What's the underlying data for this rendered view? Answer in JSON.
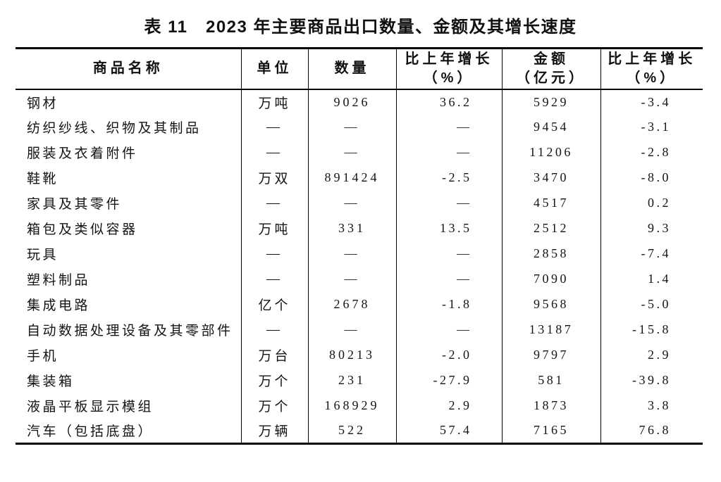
{
  "title": "表 11　2023 年主要商品出口数量、金额及其增长速度",
  "colors": {
    "background": "#ffffff",
    "text": "#1a1a1a",
    "border": "#000000"
  },
  "table": {
    "column_names": [
      "commodity-name",
      "unit",
      "quantity",
      "quantity-growth-pct",
      "amount",
      "amount-growth-pct"
    ],
    "headers": [
      {
        "label": "商品名称",
        "sub": ""
      },
      {
        "label": "单位",
        "sub": ""
      },
      {
        "label": "数量",
        "sub": ""
      },
      {
        "label": "比上年增长",
        "sub": "（%）"
      },
      {
        "label": "金额",
        "sub": "（亿元）"
      },
      {
        "label": "比上年增长",
        "sub": "（%）"
      }
    ],
    "rows": [
      [
        "钢材",
        "万吨",
        "9026",
        "36.2",
        "5929",
        "-3.4"
      ],
      [
        "纺织纱线、织物及其制品",
        "—",
        "—",
        "—",
        "9454",
        "-3.1"
      ],
      [
        "服装及衣着附件",
        "—",
        "—",
        "—",
        "11206",
        "-2.8"
      ],
      [
        "鞋靴",
        "万双",
        "891424",
        "-2.5",
        "3470",
        "-8.0"
      ],
      [
        "家具及其零件",
        "—",
        "—",
        "—",
        "4517",
        "0.2"
      ],
      [
        "箱包及类似容器",
        "万吨",
        "331",
        "13.5",
        "2512",
        "9.3"
      ],
      [
        "玩具",
        "—",
        "—",
        "—",
        "2858",
        "-7.4"
      ],
      [
        "塑料制品",
        "—",
        "—",
        "—",
        "7090",
        "1.4"
      ],
      [
        "集成电路",
        "亿个",
        "2678",
        "-1.8",
        "9568",
        "-5.0"
      ],
      [
        "自动数据处理设备及其零部件",
        "—",
        "—",
        "—",
        "13187",
        "-15.8"
      ],
      [
        "手机",
        "万台",
        "80213",
        "-2.0",
        "9797",
        "2.9"
      ],
      [
        "集装箱",
        "万个",
        "231",
        "-27.9",
        "581",
        "-39.8"
      ],
      [
        "液晶平板显示模组",
        "万个",
        "168929",
        "2.9",
        "1873",
        "3.8"
      ],
      [
        "汽车（包括底盘）",
        "万辆",
        "522",
        "57.4",
        "7165",
        "76.8"
      ]
    ]
  },
  "chart_data": {
    "type": "table",
    "title": "表 11　2023 年主要商品出口数量、金额及其增长速度",
    "columns": [
      "商品名称",
      "单位",
      "数量",
      "比上年增长（%）",
      "金额（亿元）",
      "比上年增长（%）"
    ],
    "rows": [
      [
        "钢材",
        "万吨",
        9026,
        36.2,
        5929,
        -3.4
      ],
      [
        "纺织纱线、织物及其制品",
        null,
        null,
        null,
        9454,
        -3.1
      ],
      [
        "服装及衣着附件",
        null,
        null,
        null,
        11206,
        -2.8
      ],
      [
        "鞋靴",
        "万双",
        891424,
        -2.5,
        3470,
        -8.0
      ],
      [
        "家具及其零件",
        null,
        null,
        null,
        4517,
        0.2
      ],
      [
        "箱包及类似容器",
        "万吨",
        331,
        13.5,
        2512,
        9.3
      ],
      [
        "玩具",
        null,
        null,
        null,
        2858,
        -7.4
      ],
      [
        "塑料制品",
        null,
        null,
        null,
        7090,
        1.4
      ],
      [
        "集成电路",
        "亿个",
        2678,
        -1.8,
        9568,
        -5.0
      ],
      [
        "自动数据处理设备及其零部件",
        null,
        null,
        null,
        13187,
        -15.8
      ],
      [
        "手机",
        "万台",
        80213,
        -2.0,
        9797,
        2.9
      ],
      [
        "集装箱",
        "万个",
        231,
        -27.9,
        581,
        -39.8
      ],
      [
        "液晶平板显示模组",
        "万个",
        168929,
        2.9,
        1873,
        3.8
      ],
      [
        "汽车（包括底盘）",
        "万辆",
        522,
        57.4,
        7165,
        76.8
      ]
    ]
  }
}
